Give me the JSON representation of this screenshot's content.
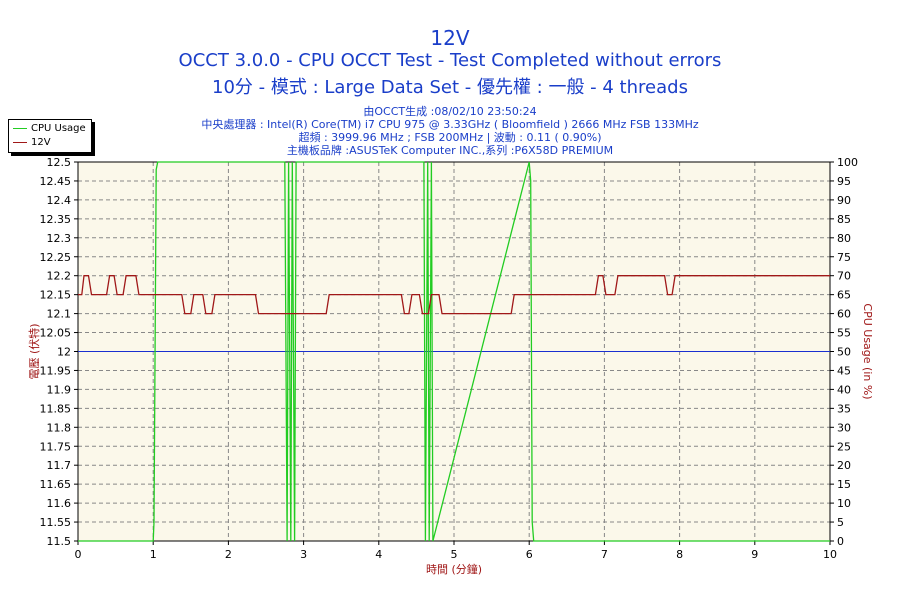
{
  "title": "12V",
  "subtitle_1": "OCCT 3.0.0 - CPU OCCT Test - Test Completed without errors",
  "subtitle_2": "10分 - 模式 : Large Data Set - 優先權 : 一般 - 4 threads",
  "info_lines": [
    "由OCCT生成 :08/02/10 23:50:24",
    "中央處理器 : Intel(R) Core(TM) i7 CPU 975 @ 3.33GHz ( Bloomfield ) 2666 MHz FSB 133MHz",
    "超頻 : 3999.96 MHz ; FSB 200MHz | 波動 : 0.11 ( 0.90%)",
    "主機板品牌 :ASUSTeK Computer INC.,系列 :P6X58D PREMIUM"
  ],
  "colors": {
    "voltage": "#a01818",
    "cpu_usage": "#22cc22",
    "reference": "#1a2fd0",
    "plot_bg": "#fbf8ea",
    "title": "#1a3ec9",
    "axis_label": "#a01818"
  },
  "chart_data": {
    "type": "line",
    "xlabel": "時間 (分鐘)",
    "ylabel_left": "電壓 (伏特)",
    "ylabel_right": "CPU Usage (in %)",
    "xlim": [
      0,
      10
    ],
    "ylim_left": [
      11.5,
      12.5
    ],
    "ylim_right": [
      0,
      100
    ],
    "x_ticks": [
      0,
      1,
      2,
      3,
      4,
      5,
      6,
      7,
      8,
      9,
      10
    ],
    "y_ticks_left": [
      11.5,
      11.55,
      11.6,
      11.65,
      11.7,
      11.75,
      11.8,
      11.85,
      11.9,
      11.95,
      12,
      12.05,
      12.1,
      12.15,
      12.2,
      12.25,
      12.3,
      12.35,
      12.4,
      12.45,
      12.5
    ],
    "y_ticks_right": [
      0,
      5,
      10,
      15,
      20,
      25,
      30,
      35,
      40,
      45,
      50,
      55,
      60,
      65,
      70,
      75,
      80,
      85,
      90,
      95,
      100
    ],
    "grid": true,
    "legend": "top-left",
    "reference_line": 12,
    "series": [
      {
        "name": "CPU Usage",
        "axis": "right",
        "x": [
          0,
          1,
          1.01,
          1.04,
          1.06,
          2.75,
          2.78,
          2.8,
          2.83,
          2.85,
          2.88,
          2.9,
          4.6,
          4.62,
          4.65,
          4.67,
          4.7,
          4.72,
          6.0,
          6.02,
          6.04,
          6.06,
          10
        ],
        "values": [
          0,
          0,
          5,
          98,
          100,
          100,
          0,
          100,
          0,
          100,
          0,
          100,
          100,
          0,
          100,
          0,
          100,
          0,
          100,
          95,
          5,
          0,
          0
        ]
      },
      {
        "name": "12V",
        "axis": "left",
        "x": [
          0,
          0.05,
          0.08,
          0.14,
          0.18,
          0.38,
          0.42,
          0.48,
          0.52,
          0.6,
          0.64,
          0.77,
          0.81,
          0.86,
          0.9,
          1.38,
          1.42,
          1.5,
          1.54,
          1.66,
          1.7,
          1.78,
          1.82,
          2.36,
          2.4,
          3.3,
          3.34,
          4.3,
          4.34,
          4.4,
          4.44,
          4.54,
          4.58,
          4.66,
          4.7,
          4.8,
          4.84,
          5.76,
          5.8,
          6.88,
          6.92,
          6.98,
          7.02,
          7.14,
          7.18,
          7.8,
          7.84,
          7.9,
          7.94,
          10
        ],
        "values": [
          12.15,
          12.15,
          12.2,
          12.2,
          12.15,
          12.15,
          12.2,
          12.2,
          12.15,
          12.15,
          12.2,
          12.2,
          12.15,
          12.15,
          12.15,
          12.15,
          12.1,
          12.1,
          12.15,
          12.15,
          12.1,
          12.1,
          12.15,
          12.15,
          12.1,
          12.1,
          12.15,
          12.15,
          12.1,
          12.1,
          12.15,
          12.15,
          12.1,
          12.1,
          12.15,
          12.15,
          12.1,
          12.1,
          12.15,
          12.15,
          12.2,
          12.2,
          12.15,
          12.15,
          12.2,
          12.2,
          12.15,
          12.15,
          12.2,
          12.2
        ]
      }
    ]
  }
}
